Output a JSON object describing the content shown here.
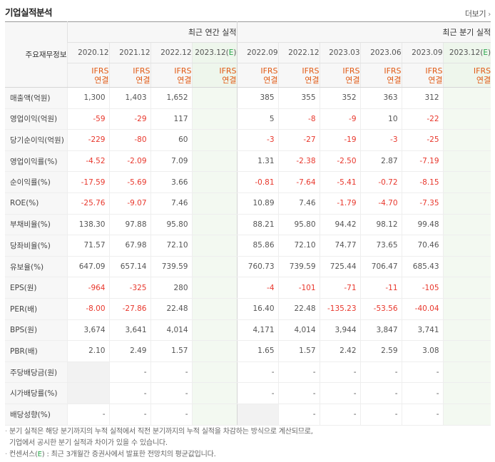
{
  "header": {
    "title": "기업실적분석",
    "more_label": "더보기"
  },
  "table": {
    "corner_label": "주요재무정보",
    "annual_group_label": "최근 연간 실적",
    "quarter_group_label": "최근 분기 실적",
    "annual_periods": [
      "2020.12",
      "2021.12",
      "2022.12",
      "2023.12(E)"
    ],
    "quarter_periods": [
      "2022.09",
      "2022.12",
      "2023.03",
      "2023.06",
      "2023.09",
      "2023.12(E)"
    ],
    "basis_line1": "IFRS",
    "basis_line2": "연결",
    "rows": [
      {
        "label": "매출액(억원)",
        "annual": [
          "1,300",
          "1,403",
          "1,652",
          ""
        ],
        "quarter": [
          "385",
          "355",
          "352",
          "363",
          "312",
          ""
        ]
      },
      {
        "label": "영업이익(억원)",
        "annual": [
          "-59",
          "-29",
          "117",
          ""
        ],
        "quarter": [
          "5",
          "-8",
          "-9",
          "10",
          "-22",
          ""
        ]
      },
      {
        "label": "당기순이익(억원)",
        "annual": [
          "-229",
          "-80",
          "60",
          ""
        ],
        "quarter": [
          "-3",
          "-27",
          "-19",
          "-3",
          "-25",
          ""
        ]
      },
      {
        "label": "영업이익률(%)",
        "annual": [
          "-4.52",
          "-2.09",
          "7.09",
          ""
        ],
        "quarter": [
          "1.31",
          "-2.38",
          "-2.50",
          "2.87",
          "-7.19",
          ""
        ]
      },
      {
        "label": "순이익률(%)",
        "annual": [
          "-17.59",
          "-5.69",
          "3.66",
          ""
        ],
        "quarter": [
          "-0.81",
          "-7.64",
          "-5.41",
          "-0.72",
          "-8.15",
          ""
        ]
      },
      {
        "label": "ROE(%)",
        "annual": [
          "-25.76",
          "-9.07",
          "7.46",
          ""
        ],
        "quarter": [
          "10.89",
          "7.46",
          "-1.79",
          "-4.70",
          "-7.35",
          ""
        ]
      },
      {
        "label": "부채비율(%)",
        "annual": [
          "138.30",
          "97.88",
          "95.80",
          ""
        ],
        "quarter": [
          "88.21",
          "95.80",
          "94.42",
          "98.12",
          "99.48",
          ""
        ]
      },
      {
        "label": "당좌비율(%)",
        "annual": [
          "71.57",
          "67.98",
          "72.10",
          ""
        ],
        "quarter": [
          "85.86",
          "72.10",
          "74.77",
          "73.65",
          "70.46",
          ""
        ]
      },
      {
        "label": "유보율(%)",
        "annual": [
          "647.09",
          "657.14",
          "739.59",
          ""
        ],
        "quarter": [
          "760.73",
          "739.59",
          "725.44",
          "706.47",
          "685.43",
          ""
        ]
      },
      {
        "label": "EPS(원)",
        "annual": [
          "-964",
          "-325",
          "280",
          ""
        ],
        "quarter": [
          "-4",
          "-101",
          "-71",
          "-11",
          "-105",
          ""
        ]
      },
      {
        "label": "PER(배)",
        "annual": [
          "-8.00",
          "-27.86",
          "22.48",
          ""
        ],
        "quarter": [
          "16.40",
          "22.48",
          "-135.23",
          "-53.56",
          "-40.04",
          ""
        ]
      },
      {
        "label": "BPS(원)",
        "annual": [
          "3,674",
          "3,641",
          "4,014",
          ""
        ],
        "quarter": [
          "4,171",
          "4,014",
          "3,944",
          "3,847",
          "3,741",
          ""
        ]
      },
      {
        "label": "PBR(배)",
        "annual": [
          "2.10",
          "2.49",
          "1.57",
          ""
        ],
        "quarter": [
          "1.65",
          "1.57",
          "2.42",
          "2.59",
          "3.08",
          ""
        ]
      },
      {
        "label": "주당배당금(원)",
        "annual": [
          "",
          "-",
          "-",
          ""
        ],
        "quarter": [
          "-",
          "-",
          "-",
          "-",
          "-",
          ""
        ]
      },
      {
        "label": "시가배당률(%)",
        "annual": [
          "",
          "-",
          "-",
          ""
        ],
        "quarter": [
          "-",
          "-",
          "-",
          "-",
          "-",
          ""
        ]
      },
      {
        "label": "배당성향(%)",
        "annual": [
          "-",
          "-",
          "-",
          ""
        ],
        "quarter": [
          "",
          "-",
          "-",
          "-",
          "-",
          ""
        ]
      }
    ]
  },
  "notes": {
    "line1": "분기 실적은 해당 분기까지의 누적 실적에서 직전 분기까지의 누적 실적을 차감하는 방식으로 계산되므로,",
    "line2": "기업에서 공시한 분기 실적과 차이가 있을 수 있습니다.",
    "line3_prefix": "컨센서스(",
    "line3_e": "E",
    "line3_suffix": ") : 최근 3개월간 증권사에서 발표한 전망치의 평균값입니다."
  },
  "colors": {
    "accent_orange": "#e15a14",
    "negative_red": "#e8372c",
    "estimate_green": "#2aa74b",
    "estimate_bg": "#f3f9f1"
  }
}
